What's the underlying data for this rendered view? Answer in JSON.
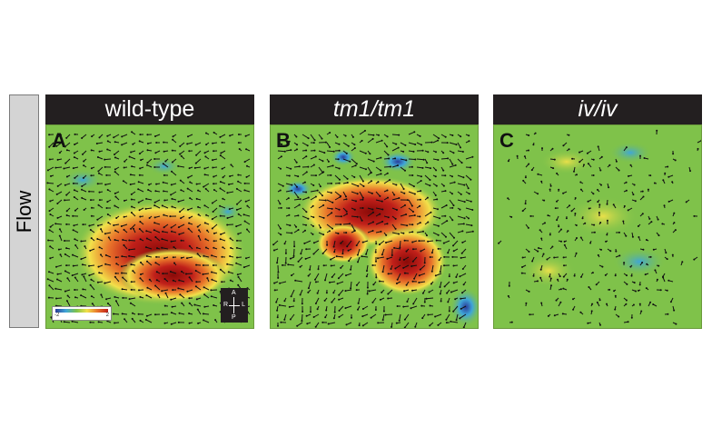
{
  "row_label": "Flow",
  "panels": [
    {
      "letter": "A",
      "title": "wild-type",
      "italic": false
    },
    {
      "letter": "B",
      "title": "tm1/tm1",
      "italic": true
    },
    {
      "letter": "C",
      "title": "iv/iv",
      "italic": true
    }
  ],
  "scale": {
    "min": "-2",
    "max": "2"
  },
  "orientation": {
    "anterior": "A",
    "posterior": "P",
    "right": "R",
    "left": "L"
  },
  "colors": {
    "background_field": "#7fc24a",
    "high": "#c0201a",
    "low": "#2a3c9a",
    "header": "#231f20"
  }
}
